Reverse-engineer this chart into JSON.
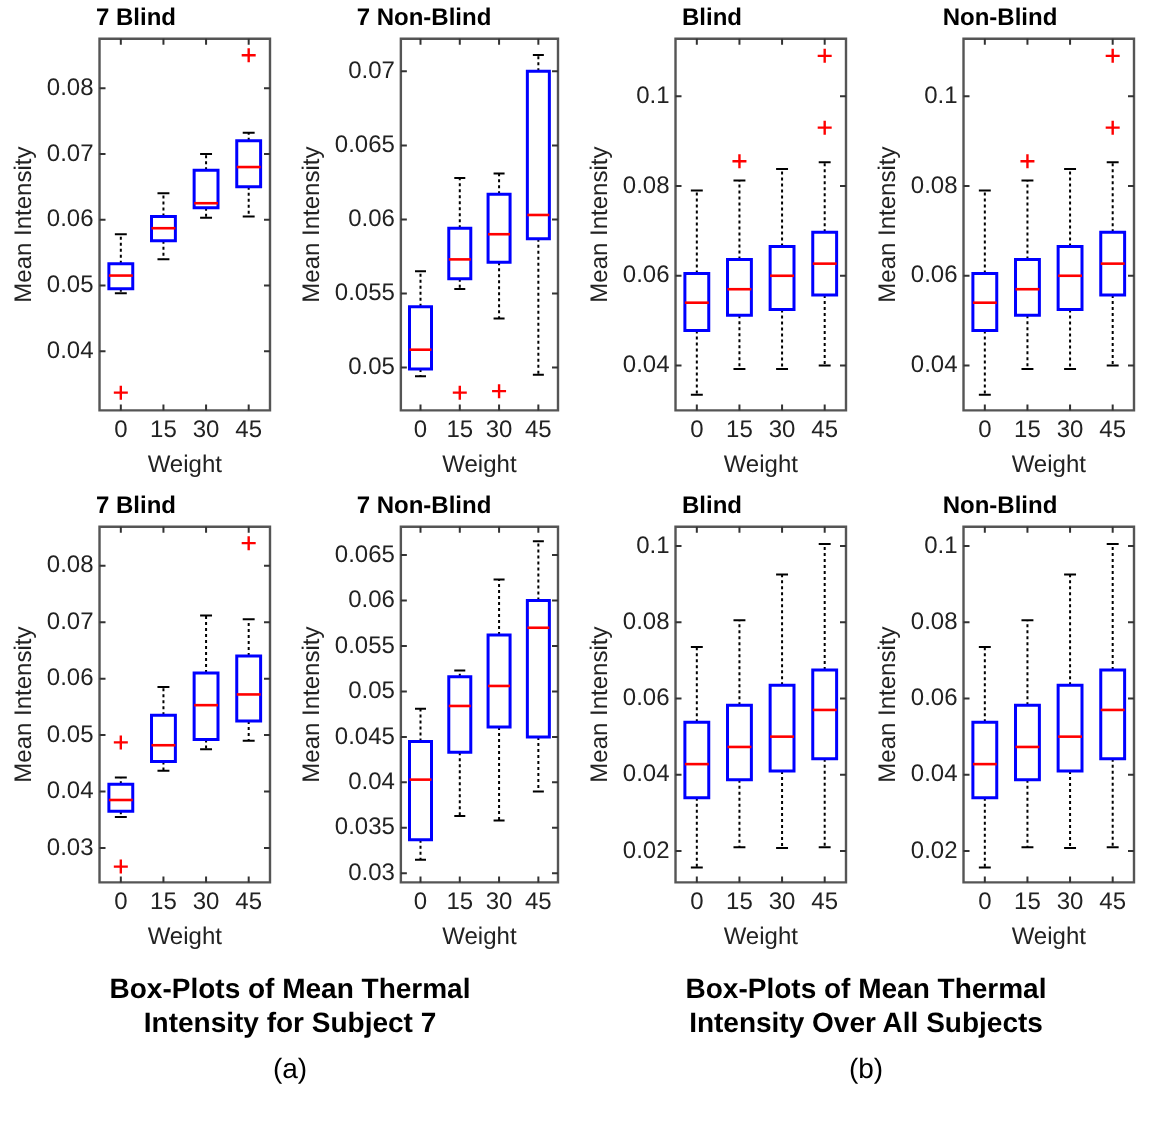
{
  "chart_data": [
    {
      "type": "box",
      "title": "7 Blind",
      "xlabel": "Weight",
      "ylabel": "Mean Intensity",
      "categories": [
        "0",
        "15",
        "30",
        "45"
      ],
      "color": "#0000ff",
      "marker": "cross",
      "ylim": [
        0.031,
        0.0875
      ],
      "yticks": [
        0.04,
        0.05,
        0.06,
        0.07,
        0.08
      ],
      "boxes": [
        {
          "low": 0.0488,
          "q1": 0.0495,
          "median": 0.0515,
          "q3": 0.0533,
          "high": 0.0578,
          "outliers": [
            0.0337
          ]
        },
        {
          "low": 0.054,
          "q1": 0.0568,
          "median": 0.0587,
          "q3": 0.0605,
          "high": 0.064
        },
        {
          "low": 0.0603,
          "q1": 0.0618,
          "median": 0.0625,
          "q3": 0.0675,
          "high": 0.07
        },
        {
          "low": 0.0605,
          "q1": 0.065,
          "median": 0.068,
          "q3": 0.072,
          "high": 0.0732,
          "outliers": [
            0.085
          ]
        }
      ]
    },
    {
      "type": "box",
      "title": "7 Non-Blind",
      "xlabel": "Weight",
      "ylabel": "Mean Intensity",
      "categories": [
        "0",
        "15",
        "30",
        "45"
      ],
      "color": "#0000ff",
      "marker": "cross",
      "ylim": [
        0.0471,
        0.0722
      ],
      "yticks": [
        0.05,
        0.055,
        0.06,
        0.065,
        0.07
      ],
      "boxes": [
        {
          "low": 0.0494,
          "q1": 0.0499,
          "median": 0.0512,
          "q3": 0.0541,
          "high": 0.0565
        },
        {
          "low": 0.0553,
          "q1": 0.056,
          "median": 0.0573,
          "q3": 0.0594,
          "high": 0.0628,
          "outliers": [
            0.0483
          ]
        },
        {
          "low": 0.0533,
          "q1": 0.0571,
          "median": 0.059,
          "q3": 0.0617,
          "high": 0.0631,
          "outliers": [
            0.0484
          ]
        },
        {
          "low": 0.0495,
          "q1": 0.0587,
          "median": 0.0603,
          "q3": 0.07,
          "high": 0.0711
        }
      ]
    },
    {
      "type": "box",
      "title": "Blind",
      "xlabel": "Weight",
      "ylabel": "Mean Intensity",
      "categories": [
        "0",
        "15",
        "30",
        "45"
      ],
      "color": "#0000ff",
      "marker": "cross",
      "ylim": [
        0.03,
        0.1128
      ],
      "yticks": [
        0.04,
        0.06,
        0.08,
        0.1
      ],
      "boxes": [
        {
          "low": 0.0335,
          "q1": 0.0478,
          "median": 0.054,
          "q3": 0.0605,
          "high": 0.079
        },
        {
          "low": 0.0392,
          "q1": 0.0512,
          "median": 0.057,
          "q3": 0.0636,
          "high": 0.0812,
          "outliers": [
            0.0855
          ]
        },
        {
          "low": 0.0392,
          "q1": 0.0525,
          "median": 0.06,
          "q3": 0.0665,
          "high": 0.0838
        },
        {
          "low": 0.04,
          "q1": 0.0557,
          "median": 0.0627,
          "q3": 0.0697,
          "high": 0.0853,
          "outliers": [
            0.093,
            0.109
          ]
        }
      ]
    },
    {
      "type": "box",
      "title": "Non-Blind",
      "xlabel": "Weight",
      "ylabel": "Mean Intensity",
      "categories": [
        "0",
        "15",
        "30",
        "45"
      ],
      "color": "#0000ff",
      "marker": "cross",
      "ylim": [
        0.03,
        0.1128
      ],
      "yticks": [
        0.04,
        0.06,
        0.08,
        0.1
      ],
      "boxes": [
        {
          "low": 0.0335,
          "q1": 0.0478,
          "median": 0.054,
          "q3": 0.0605,
          "high": 0.079
        },
        {
          "low": 0.0392,
          "q1": 0.0512,
          "median": 0.057,
          "q3": 0.0636,
          "high": 0.0812,
          "outliers": [
            0.0855
          ]
        },
        {
          "low": 0.0392,
          "q1": 0.0525,
          "median": 0.06,
          "q3": 0.0665,
          "high": 0.0838
        },
        {
          "low": 0.04,
          "q1": 0.0557,
          "median": 0.0627,
          "q3": 0.0697,
          "high": 0.0853,
          "outliers": [
            0.093,
            0.109
          ]
        }
      ]
    },
    {
      "type": "box",
      "title": "7 Blind",
      "xlabel": "Weight",
      "ylabel": "Mean Intensity",
      "categories": [
        "0",
        "15",
        "30",
        "45"
      ],
      "color": "#0000ff",
      "marker": "cross",
      "ylim": [
        0.0239,
        0.0869
      ],
      "yticks": [
        0.03,
        0.04,
        0.05,
        0.06,
        0.07,
        0.08
      ],
      "annotations": [
        "Box-Plots of Mean Thermal Intensity for Subject 7",
        "(a)"
      ],
      "boxes": [
        {
          "low": 0.0355,
          "q1": 0.0365,
          "median": 0.0385,
          "q3": 0.0413,
          "high": 0.0425,
          "outliers": [
            0.0487,
            0.0267
          ]
        },
        {
          "low": 0.0437,
          "q1": 0.0453,
          "median": 0.0482,
          "q3": 0.0535,
          "high": 0.0585
        },
        {
          "low": 0.0475,
          "q1": 0.0492,
          "median": 0.0553,
          "q3": 0.061,
          "high": 0.0712
        },
        {
          "low": 0.049,
          "q1": 0.0525,
          "median": 0.0572,
          "q3": 0.064,
          "high": 0.0705,
          "outliers": [
            0.084
          ]
        }
      ]
    },
    {
      "type": "box",
      "title": "7 Non-Blind",
      "xlabel": "Weight",
      "ylabel": "Mean Intensity",
      "categories": [
        "0",
        "15",
        "30",
        "45"
      ],
      "color": "#0000ff",
      "marker": "cross",
      "ylim": [
        0.029,
        0.0681
      ],
      "yticks": [
        0.03,
        0.035,
        0.04,
        0.045,
        0.05,
        0.055,
        0.06,
        0.065
      ],
      "boxes": [
        {
          "low": 0.0315,
          "q1": 0.0337,
          "median": 0.0403,
          "q3": 0.0445,
          "high": 0.0481
        },
        {
          "low": 0.0363,
          "q1": 0.0433,
          "median": 0.0484,
          "q3": 0.0516,
          "high": 0.0523
        },
        {
          "low": 0.0358,
          "q1": 0.0461,
          "median": 0.0506,
          "q3": 0.0562,
          "high": 0.0623
        },
        {
          "low": 0.039,
          "q1": 0.045,
          "median": 0.057,
          "q3": 0.06,
          "high": 0.0665
        }
      ]
    },
    {
      "type": "box",
      "title": "Blind",
      "xlabel": "Weight",
      "ylabel": "Mean Intensity",
      "categories": [
        "0",
        "15",
        "30",
        "45"
      ],
      "color": "#0000ff",
      "ylim": [
        0.0118,
        0.105
      ],
      "yticks": [
        0.02,
        0.04,
        0.06,
        0.08,
        0.1
      ],
      "annotations": [
        "Box-Plots of Mean Thermal Intensity Over All Subjects",
        "(b)"
      ],
      "boxes": [
        {
          "low": 0.0157,
          "q1": 0.034,
          "median": 0.0428,
          "q3": 0.0538,
          "high": 0.0735
        },
        {
          "low": 0.021,
          "q1": 0.0387,
          "median": 0.0473,
          "q3": 0.0582,
          "high": 0.0805
        },
        {
          "low": 0.0208,
          "q1": 0.041,
          "median": 0.05,
          "q3": 0.0635,
          "high": 0.0925
        },
        {
          "low": 0.021,
          "q1": 0.0442,
          "median": 0.057,
          "q3": 0.0675,
          "high": 0.1005
        }
      ]
    },
    {
      "type": "box",
      "title": "Non-Blind",
      "xlabel": "Weight",
      "ylabel": "Mean Intensity",
      "categories": [
        "0",
        "15",
        "30",
        "45"
      ],
      "color": "#0000ff",
      "ylim": [
        0.0118,
        0.105
      ],
      "yticks": [
        0.02,
        0.04,
        0.06,
        0.08,
        0.1
      ],
      "boxes": [
        {
          "low": 0.0157,
          "q1": 0.034,
          "median": 0.0428,
          "q3": 0.0538,
          "high": 0.0735
        },
        {
          "low": 0.021,
          "q1": 0.0387,
          "median": 0.0473,
          "q3": 0.0582,
          "high": 0.0805
        },
        {
          "low": 0.0208,
          "q1": 0.041,
          "median": 0.05,
          "q3": 0.0635,
          "high": 0.0925
        },
        {
          "low": 0.021,
          "q1": 0.0442,
          "median": 0.057,
          "q3": 0.0675,
          "high": 0.1005
        }
      ]
    }
  ]
}
